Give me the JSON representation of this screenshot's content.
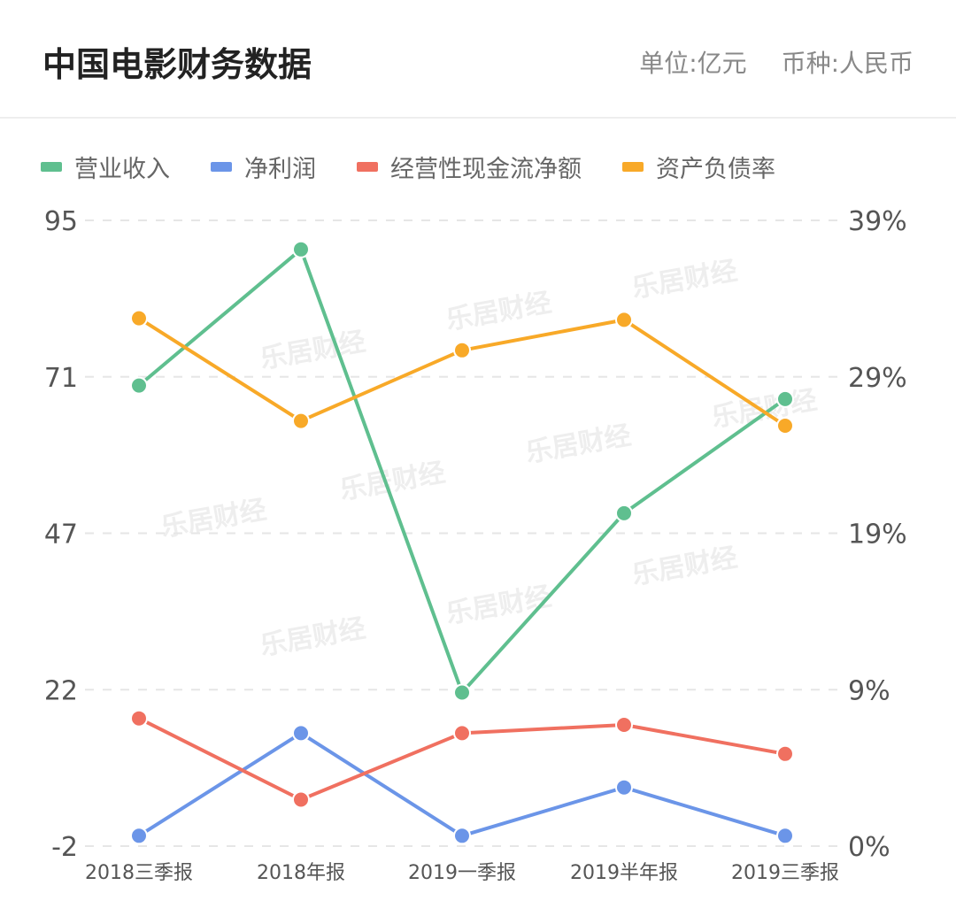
{
  "header": {
    "title": "中国电影财务数据",
    "unit": "单位:亿元",
    "currency": "币种:人民币"
  },
  "watermark_text": "乐居财经",
  "chart_data": {
    "type": "line",
    "title": "中国电影财务数据",
    "categories": [
      "2018三季报",
      "2018年报",
      "2019一季报",
      "2019半年报",
      "2019三季报"
    ],
    "y_left": {
      "ticks": [
        "95",
        "71",
        "47",
        "22",
        "-2"
      ],
      "ylim": [
        -2,
        95
      ]
    },
    "y_right": {
      "ticks": [
        "39%",
        "29%",
        "19%",
        "9%",
        "0%"
      ],
      "ylim": [
        0,
        39
      ]
    },
    "grid": true,
    "legend_position": "top-left",
    "series": [
      {
        "name": "营业收入",
        "axis": "left",
        "color": "#5fbf8f",
        "values": [
          69.4,
          90.5,
          21.8,
          49.6,
          67.3
        ]
      },
      {
        "name": "净利润",
        "axis": "left",
        "color": "#6b95e8",
        "values": [
          -0.4,
          15.5,
          -0.4,
          7.1,
          -0.4
        ]
      },
      {
        "name": "经营性现金流净额",
        "axis": "left",
        "color": "#f07060",
        "values": [
          17.8,
          5.2,
          15.5,
          16.8,
          12.3
        ]
      },
      {
        "name": "资产负债率",
        "axis": "right",
        "color": "#f8a928",
        "values": [
          32.9,
          26.5,
          30.9,
          32.8,
          26.2
        ]
      }
    ]
  }
}
